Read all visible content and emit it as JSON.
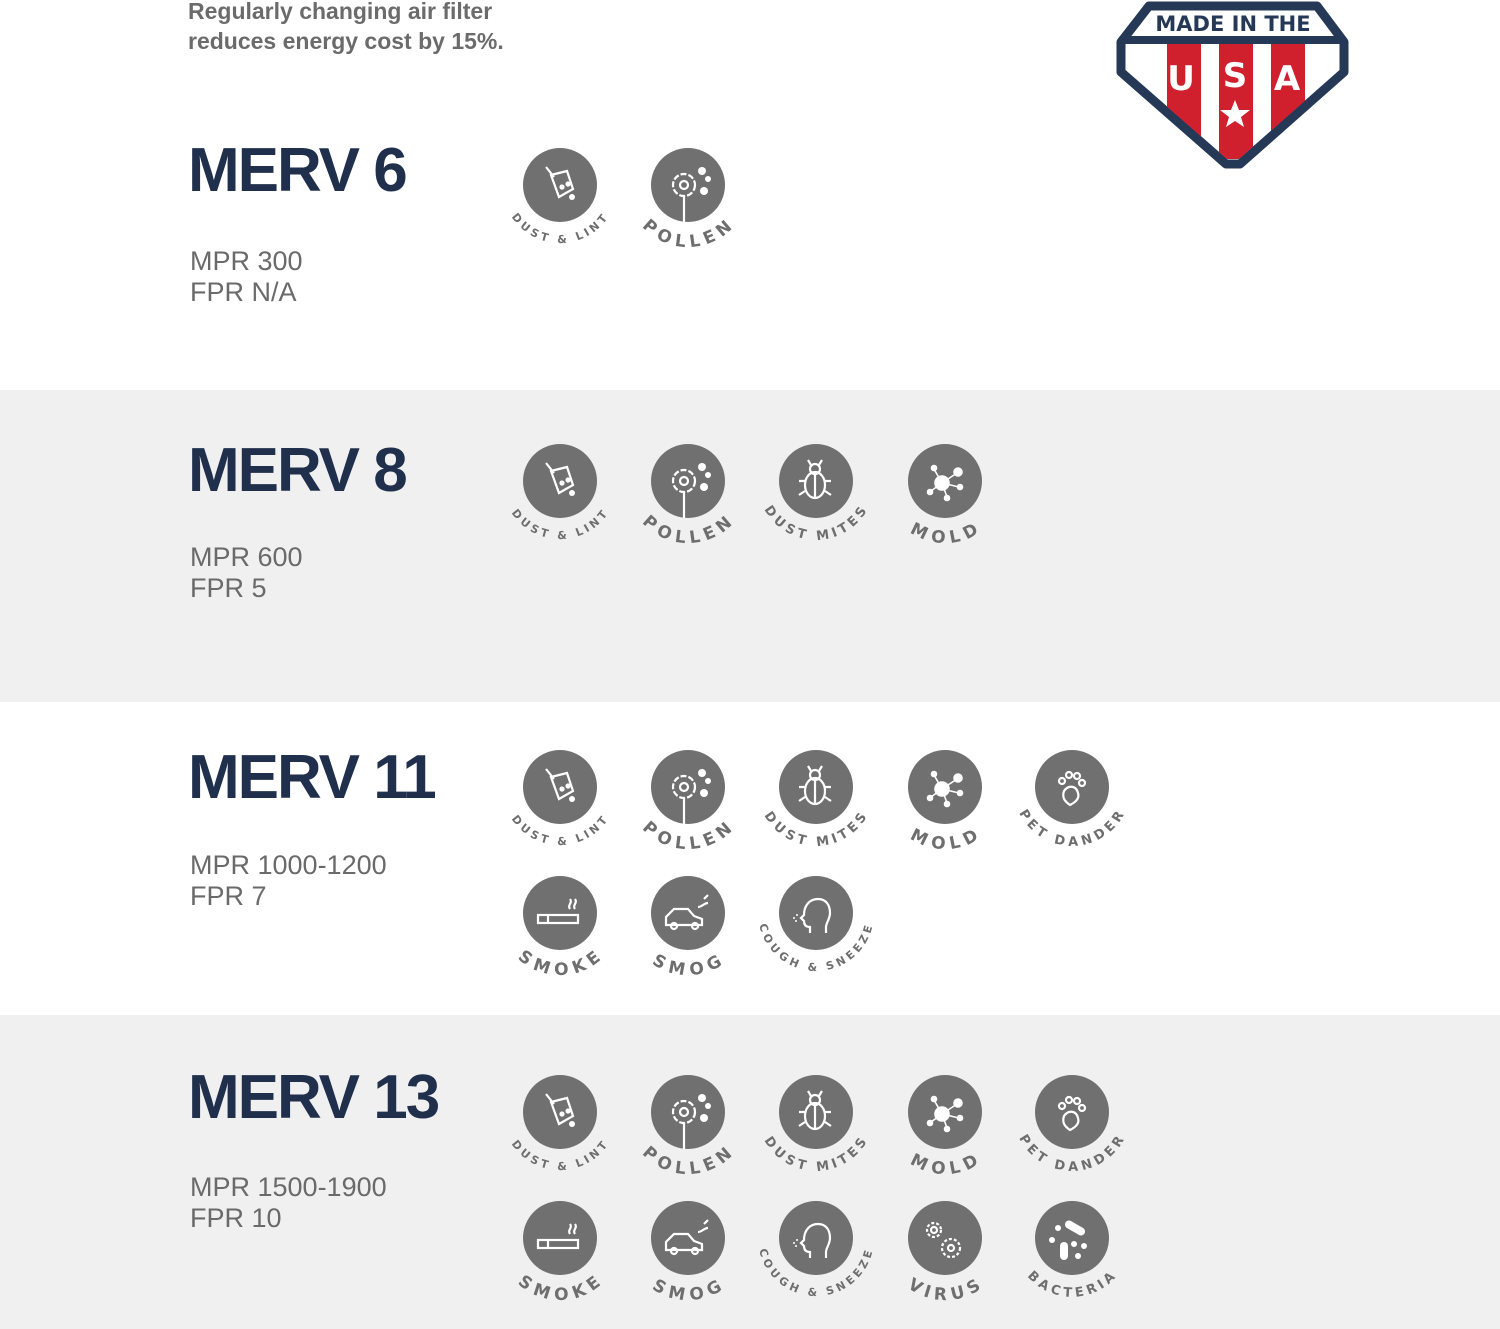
{
  "intro": {
    "line1": "Regularly changing air filter",
    "line2": "reduces energy cost by 15%."
  },
  "badge": {
    "top_text": "MADE IN THE",
    "letters": [
      "U",
      "S",
      "A"
    ],
    "colors": {
      "navy": "#253957",
      "red": "#d0202e",
      "white": "#ffffff"
    }
  },
  "colors": {
    "title": "#1f2f4c",
    "icon_fill": "#707070",
    "band_grey": "#f0f0f0"
  },
  "sections": [
    {
      "title": "MERV 6",
      "mpr": "MPR 300",
      "fpr": "FPR N/A",
      "items": [
        {
          "label": "DUST & LINT",
          "icon": "dustpan"
        },
        {
          "label": "POLLEN",
          "icon": "flower"
        }
      ]
    },
    {
      "title": "MERV 8",
      "mpr": "MPR 600",
      "fpr": "FPR 5",
      "items": [
        {
          "label": "DUST & LINT",
          "icon": "dustpan"
        },
        {
          "label": "POLLEN",
          "icon": "flower"
        },
        {
          "label": "DUST MITES",
          "icon": "bug"
        },
        {
          "label": "MOLD",
          "icon": "spores"
        }
      ]
    },
    {
      "title": "MERV 11",
      "mpr": "MPR 1000-1200",
      "fpr": "FPR 7",
      "items": [
        {
          "label": "DUST & LINT",
          "icon": "dustpan"
        },
        {
          "label": "POLLEN",
          "icon": "flower"
        },
        {
          "label": "DUST MITES",
          "icon": "bug"
        },
        {
          "label": "MOLD",
          "icon": "spores"
        },
        {
          "label": "PET DANDER",
          "icon": "paw"
        },
        {
          "label": "SMOKE",
          "icon": "cigarette"
        },
        {
          "label": "SMOG",
          "icon": "car"
        },
        {
          "label": "COUGH & SNEEZE",
          "icon": "head"
        }
      ]
    },
    {
      "title": "MERV 13",
      "mpr": "MPR 1500-1900",
      "fpr": "FPR 10",
      "items": [
        {
          "label": "DUST & LINT",
          "icon": "dustpan"
        },
        {
          "label": "POLLEN",
          "icon": "flower"
        },
        {
          "label": "DUST MITES",
          "icon": "bug"
        },
        {
          "label": "MOLD",
          "icon": "spores"
        },
        {
          "label": "PET DANDER",
          "icon": "paw"
        },
        {
          "label": "SMOKE",
          "icon": "cigarette"
        },
        {
          "label": "SMOG",
          "icon": "car"
        },
        {
          "label": "COUGH & SNEEZE",
          "icon": "head"
        },
        {
          "label": "VIRUS",
          "icon": "virus"
        },
        {
          "label": "BACTERIA",
          "icon": "bacteria"
        }
      ]
    }
  ]
}
